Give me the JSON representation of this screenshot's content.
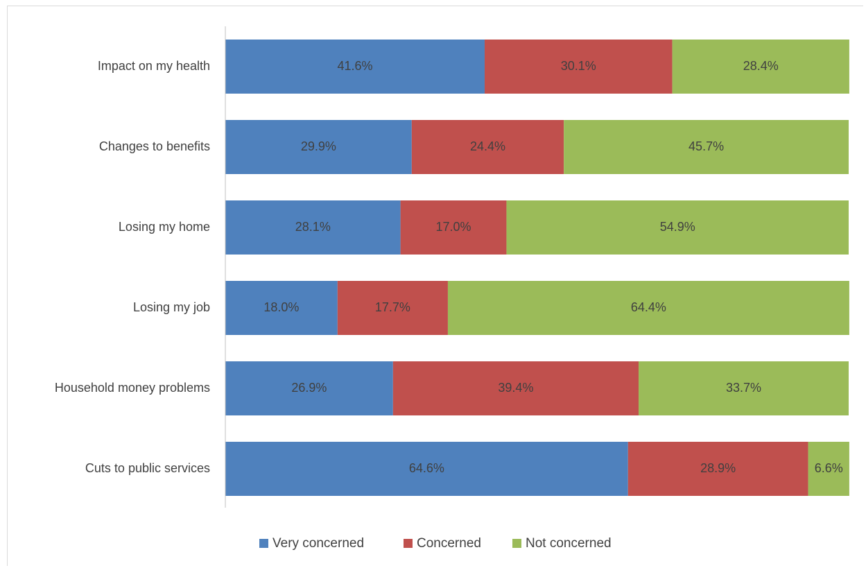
{
  "chart_data": {
    "type": "bar",
    "orientation": "horizontal",
    "stacked": true,
    "categories": [
      "Impact on my health",
      "Changes to benefits",
      "Losing my home",
      "Losing my job",
      "Household money problems",
      "Cuts to public services"
    ],
    "series": [
      {
        "name": "Very concerned",
        "color": "#4f81bd",
        "values": [
          41.6,
          29.9,
          28.1,
          18.0,
          26.9,
          64.6
        ]
      },
      {
        "name": "Concerned",
        "color": "#c0504d",
        "values": [
          30.1,
          24.4,
          17.0,
          17.7,
          39.4,
          28.9
        ]
      },
      {
        "name": "Not concerned",
        "color": "#9bbb59",
        "values": [
          28.4,
          45.7,
          54.9,
          64.4,
          33.7,
          6.6
        ]
      }
    ],
    "data_labels": [
      [
        "41.6%",
        "29.9%",
        "28.1%",
        "18.0%",
        "26.9%",
        "64.6%"
      ],
      [
        "30.1%",
        "24.4%",
        "17.0%",
        "17.7%",
        "39.4%",
        "28.9%"
      ],
      [
        "28.4%",
        "45.7%",
        "54.9%",
        "64.4%",
        "33.7%",
        "6.6%"
      ]
    ],
    "title": "",
    "xlabel": "",
    "ylabel": "",
    "xlim": [
      0,
      100
    ],
    "grid": false,
    "legend": "bottom"
  }
}
